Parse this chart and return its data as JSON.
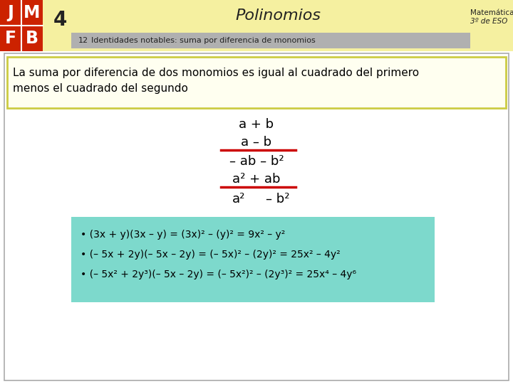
{
  "bg_color": "#ffffff",
  "header_yellow": "#f5f0a0",
  "jmfb_bg": "#cc2200",
  "subtitle_bg": "#b0b0b0",
  "yellow_box_bg": "#fffff0",
  "yellow_box_border": "#cccc44",
  "cyan_box_bg": "#7dd9cc",
  "title_text": "Polinomios",
  "number_text": "4",
  "math_label": "12",
  "subtitle": "Identidades notables: suma por diferencia de monomios",
  "top_right_line1": "Matemáticas",
  "top_right_line2": "3º de ESO",
  "rule_text": "La suma por diferencia de dos monomios es igual al cuadrado del primero\nmenos el cuadrado del segundo",
  "fraction_line1": "a + b",
  "fraction_line2": "a – b",
  "fraction_result": "– ab – b²",
  "fraction_line3": "a² + ab",
  "final_left": "a²",
  "final_right": "– b²",
  "example1": "• (3x + y)(3x – y) = (3x)² – (y)² = 9x² – y²",
  "example2": "• (– 5x + 2y)(– 5x – 2y) = (– 5x)² – (2y)² = 25x² – 4y²",
  "example3": "• (– 5x² + 2y³)(– 5x – 2y) = (– 5x²)² – (2y³)² = 25x⁴ – 4y⁶"
}
